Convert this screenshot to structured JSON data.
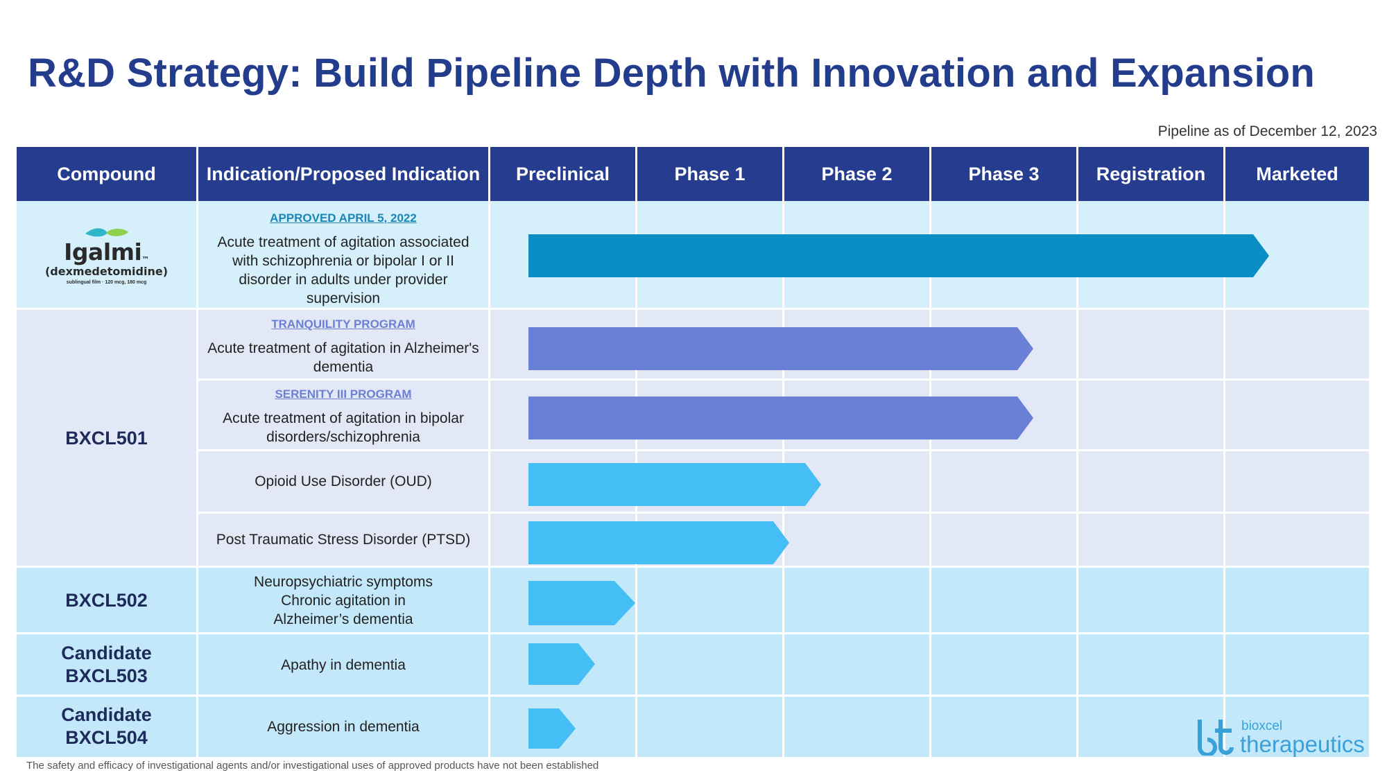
{
  "title": "R&D Strategy: Build Pipeline Depth with Innovation and Expansion",
  "as_of": "Pipeline as of December 12, 2023",
  "headers": [
    "Compound",
    "Indication/Proposed Indication",
    "Preclinical",
    "Phase 1",
    "Phase 2",
    "Phase 3",
    "Registration",
    "Marketed"
  ],
  "igalmi": {
    "name": "Igalmi",
    "tm": "™",
    "generic": "(dexmedetomidine)",
    "small_text": "sublingual film · 120 mcg, 180 mcg"
  },
  "compounds": {
    "bxcl501": "BXCL501",
    "bxcl502": "BXCL502",
    "cand503_line1": "Candidate",
    "cand503_line2": "BXCL503",
    "cand504_line1": "Candidate",
    "cand504_line2": "BXCL504"
  },
  "rows": [
    {
      "program": "APPROVED APRIL 5, 2022",
      "indication": "Acute treatment of agitation associated with schizophrenia or bipolar I or II disorder in adults under provider supervision",
      "stage": "Marketed",
      "progress": 0.83
    },
    {
      "program": "TRANQUILITY PROGRAM",
      "indication": "Acute treatment of agitation in Alzheimer's dementia",
      "stage": "Phase 3",
      "progress": 0.57
    },
    {
      "program": "SERENITY III PROGRAM",
      "indication": "Acute treatment of agitation in bipolar disorders/schizophrenia",
      "stage": "Phase 3",
      "progress": 0.57
    },
    {
      "program": "",
      "indication": "Opioid Use Disorder (OUD)",
      "stage": "Phase 2",
      "progress": 0.33
    },
    {
      "program": "",
      "indication": "Post Traumatic Stress Disorder (PTSD)",
      "stage": "Phase 2",
      "progress": 0.29
    },
    {
      "program": "",
      "indication_lines": [
        "Neuropsychiatric symptoms",
        "Chronic agitation in",
        "Alzheimer’s dementia"
      ],
      "stage": "Preclinical",
      "progress": 0.12
    },
    {
      "program": "",
      "indication": "Apathy in dementia",
      "stage": "Preclinical",
      "progress": 0.08
    },
    {
      "program": "",
      "indication": "Aggression in dementia",
      "stage": "Preclinical",
      "progress": 0.06
    }
  ],
  "footnote": "The safety and efficacy of investigational agents and/or investigational uses of approved products have not been established",
  "company_logo": {
    "small": "bioxcel",
    "big": "therapeutics"
  },
  "colors": {
    "header": "#263d8f",
    "title": "#243c8c",
    "band_light_blue": "#d5f0fb",
    "band_lavender": "#e3e8f6",
    "band_sky": "#c3e8fa",
    "arrow_marketed": "#0a8ec4",
    "arrow_phase3": "#6a7fd6",
    "arrow_early": "#45bdf5"
  }
}
